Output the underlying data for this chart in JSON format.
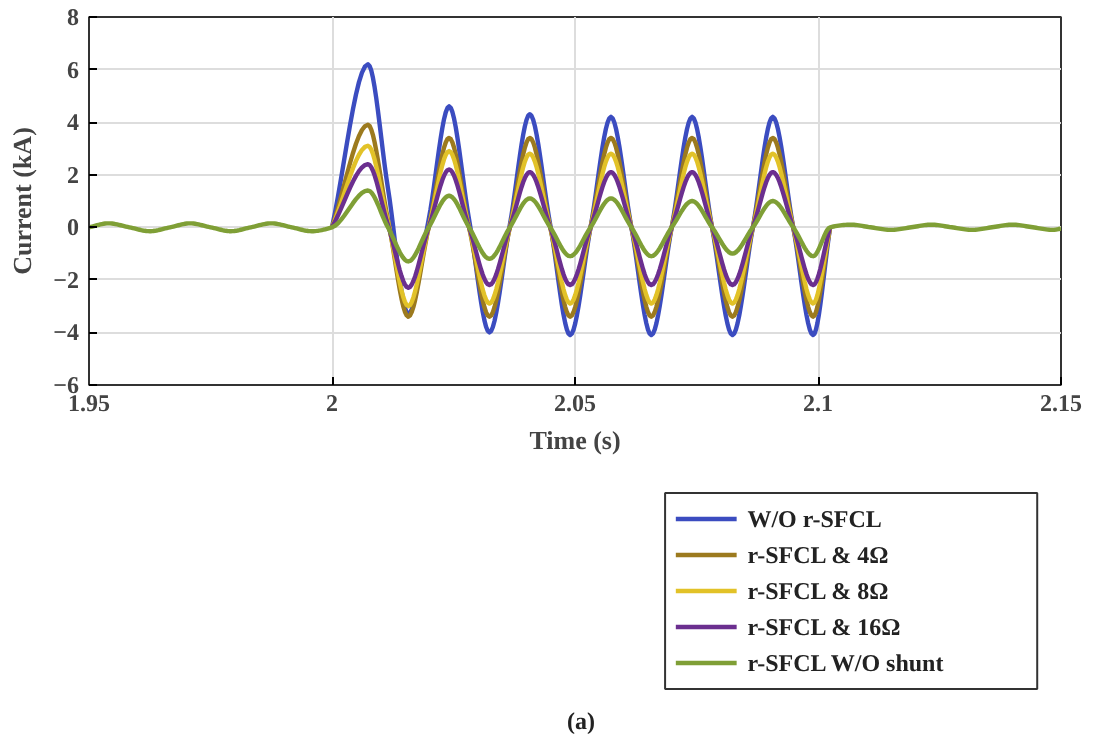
{
  "chart_data": {
    "type": "line",
    "xlabel": "Time (s)",
    "ylabel": "Current (kA)",
    "x": [
      1.95,
      1.954,
      1.9583,
      1.9625,
      1.9667,
      1.9708,
      1.975,
      1.9792,
      1.9833,
      1.9875,
      1.9917,
      1.9958,
      2.0,
      2.0074,
      2.0115,
      2.0157,
      2.0199,
      2.0241,
      2.0282,
      2.0324,
      2.0366,
      2.0407,
      2.0449,
      2.049,
      2.0532,
      2.0574,
      2.0616,
      2.0657,
      2.0699,
      2.0741,
      2.0782,
      2.0824,
      2.0866,
      2.0907,
      2.0949,
      2.099,
      2.1025,
      2.1067,
      2.1108,
      2.115,
      2.1192,
      2.1233,
      2.1275,
      2.1317,
      2.1358,
      2.14,
      2.1442,
      2.1483,
      2.15
    ],
    "series": [
      {
        "name": "W/O r-SFCL",
        "color": "#3b4cc0",
        "values": [
          null,
          null,
          null,
          null,
          null,
          null,
          null,
          null,
          null,
          null,
          null,
          null,
          0,
          6.2,
          1.5,
          -3.3,
          0.3,
          4.6,
          0.3,
          -4.0,
          0.1,
          4.3,
          0.1,
          -4.1,
          0,
          4.2,
          0,
          -4.1,
          0,
          4.2,
          0,
          -4.1,
          0,
          4.2,
          0,
          -4.1,
          0,
          null,
          null,
          null,
          null,
          null,
          null,
          null,
          null,
          null,
          null,
          null,
          null
        ]
      },
      {
        "name": "r-SFCL & 4Ω",
        "color": "#9c7a1e",
        "values": [
          null,
          null,
          null,
          null,
          null,
          null,
          null,
          null,
          null,
          null,
          null,
          null,
          0,
          3.9,
          0.3,
          -3.4,
          0,
          3.4,
          0,
          -3.4,
          0,
          3.4,
          0,
          -3.4,
          0,
          3.4,
          0,
          -3.4,
          0,
          3.4,
          0,
          -3.4,
          0,
          3.4,
          0,
          -3.4,
          0,
          null,
          null,
          null,
          null,
          null,
          null,
          null,
          null,
          null,
          null,
          null,
          null
        ]
      },
      {
        "name": "r-SFCL & 8Ω",
        "color": "#e2c228",
        "values": [
          null,
          null,
          null,
          null,
          null,
          null,
          null,
          null,
          null,
          null,
          null,
          null,
          0,
          3.1,
          0.2,
          -3.0,
          0,
          2.9,
          0,
          -2.9,
          0,
          2.8,
          0,
          -2.9,
          0,
          2.8,
          0,
          -2.9,
          0,
          2.8,
          0,
          -2.9,
          0,
          2.8,
          0,
          -2.9,
          0,
          null,
          null,
          null,
          null,
          null,
          null,
          null,
          null,
          null,
          null,
          null,
          null
        ]
      },
      {
        "name": "r-SFCL & 16Ω",
        "color": "#6b2f8f",
        "values": [
          null,
          null,
          null,
          null,
          null,
          null,
          null,
          null,
          null,
          null,
          null,
          null,
          0,
          2.4,
          0.1,
          -2.3,
          0,
          2.2,
          0,
          -2.2,
          0,
          2.1,
          0,
          -2.2,
          0,
          2.1,
          0,
          -2.2,
          0,
          2.1,
          0,
          -2.2,
          0,
          2.1,
          0,
          -2.2,
          0,
          null,
          null,
          null,
          null,
          null,
          null,
          null,
          null,
          null,
          null,
          null,
          null
        ]
      },
      {
        "name": "r-SFCL W/O shunt",
        "color": "#7f9f36",
        "values": [
          0,
          0.15,
          0,
          -0.15,
          0,
          0.15,
          0,
          -0.15,
          0,
          0.15,
          0,
          -0.15,
          0,
          1.4,
          0,
          -1.3,
          0,
          1.2,
          0,
          -1.2,
          0,
          1.1,
          0,
          -1.1,
          0,
          1.1,
          0,
          -1.1,
          0,
          1.0,
          0,
          -1.0,
          0,
          1.0,
          0,
          -1.1,
          0,
          0.1,
          0,
          -0.1,
          0,
          0.1,
          0,
          -0.1,
          0,
          0.1,
          0,
          -0.1,
          -0.05
        ]
      }
    ],
    "xlim": [
      1.95,
      2.15
    ],
    "xticks": [
      1.95,
      2,
      2.05,
      2.1,
      2.15
    ],
    "ylim": [
      -6,
      8
    ],
    "yticks": [
      {
        "value": -6,
        "label": "−6"
      },
      {
        "value": -4,
        "label": "−4"
      },
      {
        "value": -2,
        "label": "−2"
      },
      0,
      2,
      4,
      6,
      8
    ],
    "grid": true,
    "legend": "bottom right",
    "line_style": "solid",
    "marker": "none",
    "annotations": [
      "(a)"
    ]
  }
}
